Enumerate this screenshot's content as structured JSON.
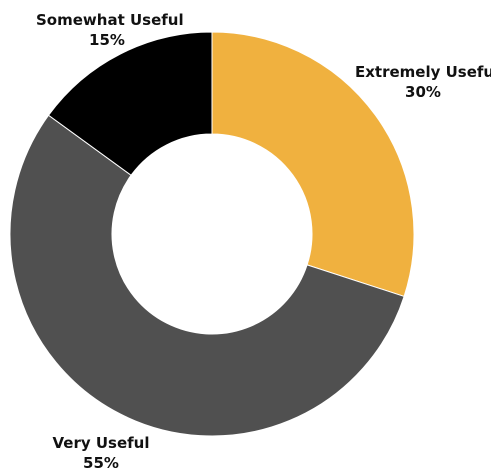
{
  "chart_data": {
    "type": "pie",
    "donut": true,
    "title": "",
    "slices": [
      {
        "label": "Extremely Useful",
        "value": 30,
        "display": "30%",
        "color": "#F0B13F"
      },
      {
        "label": "Very Useful",
        "value": 55,
        "display": "55%",
        "color": "#505050"
      },
      {
        "label": "Somewhat Useful",
        "value": 15,
        "display": "15%",
        "color": "#000000"
      }
    ],
    "legend": "none",
    "labels": "outside"
  }
}
